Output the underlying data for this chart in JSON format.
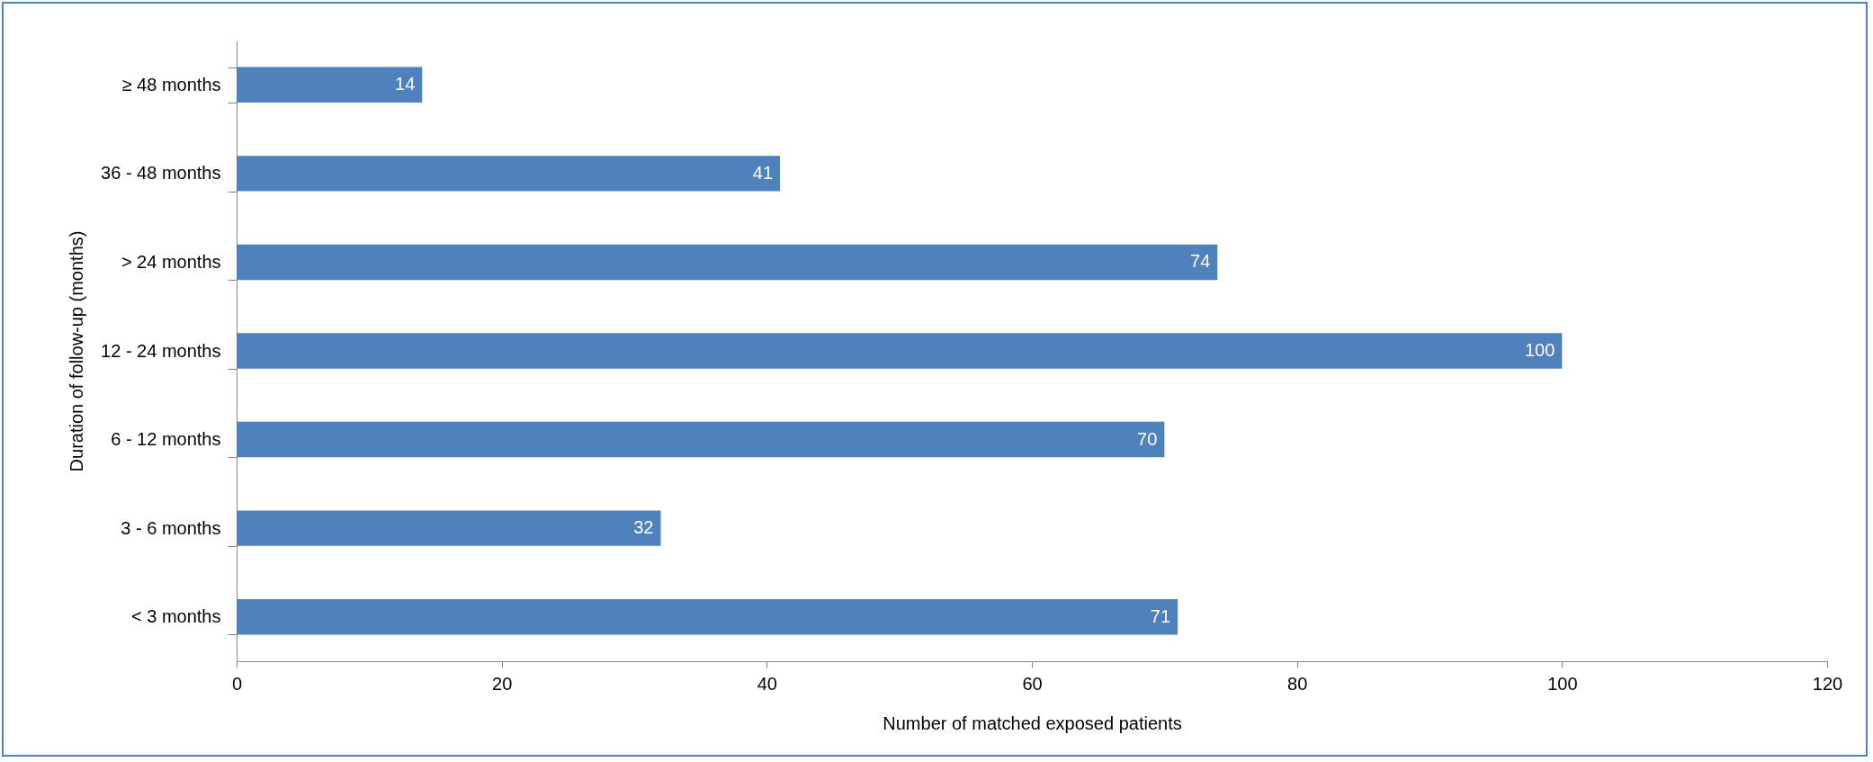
{
  "chart_data": {
    "type": "bar",
    "orientation": "horizontal",
    "xlabel": "Number of matched exposed patients",
    "ylabel": "Duration of follow-up (months)",
    "categories": [
      "≥ 48 months",
      "36 - 48 months",
      "> 24 months",
      "12 - 24 months",
      "6 - 12 months",
      "3 - 6 months",
      "< 3 months"
    ],
    "values": [
      14,
      41,
      74,
      100,
      70,
      32,
      71
    ],
    "color": "#4f81bd",
    "xlim": [
      0,
      120
    ],
    "xticks": [
      0,
      20,
      40,
      60,
      80,
      100,
      120
    ],
    "data_labels": true,
    "grid": false
  }
}
